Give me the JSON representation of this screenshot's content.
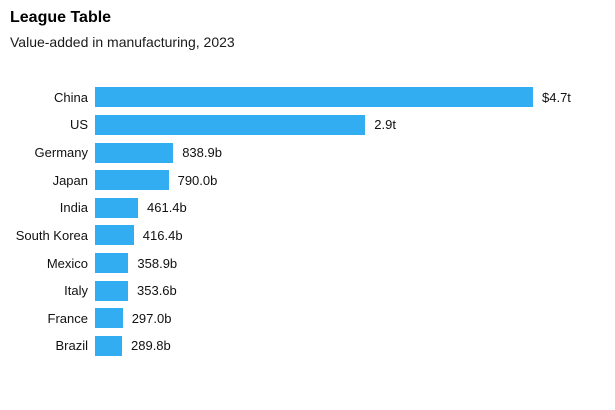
{
  "header": {
    "title": "League Table",
    "subtitle": "Value-added in manufacturing, 2023"
  },
  "colors": {
    "bar": "#33ADF2",
    "title_text": "#000000",
    "label_text": "#111111",
    "background": "#ffffff"
  },
  "chart_data": {
    "type": "bar",
    "orientation": "horizontal",
    "title": "League Table",
    "subtitle": "Value-added in manufacturing, 2023",
    "categories": [
      "China",
      "US",
      "Germany",
      "Japan",
      "India",
      "South Korea",
      "Mexico",
      "Italy",
      "France",
      "Brazil"
    ],
    "values_billions_usd": [
      4700,
      2900,
      838.9,
      790.0,
      461.4,
      416.4,
      358.9,
      353.6,
      297.0,
      289.8
    ],
    "value_labels": [
      "$4.7t",
      "2.9t",
      "838.9b",
      "790.0b",
      "461.4b",
      "416.4b",
      "358.9b",
      "353.6b",
      "297.0b",
      "289.8b"
    ],
    "unit": "USD",
    "xlim": [
      0,
      4700
    ],
    "grid": false,
    "legend": false,
    "axis_ticks": false
  }
}
